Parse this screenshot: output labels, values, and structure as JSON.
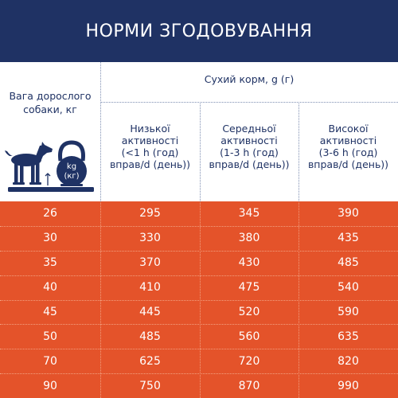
{
  "title": "НОРМИ ЗГОДОВУВАННЯ",
  "header": {
    "weight_label_line1": "Вага дорослого",
    "weight_label_line2": "собаки, кг",
    "dry_food_label": "Сухий корм, g (г)",
    "columns": [
      {
        "line1": "Низької",
        "line2": "активності",
        "line3": "(<1 h (год)",
        "line4": "вправ/d (день))"
      },
      {
        "line1": "Середньої",
        "line2": "активності",
        "line3": "(1-3 h (год)",
        "line4": "вправ/d (день))"
      },
      {
        "line1": "Високої",
        "line2": "активності",
        "line3": "(3-6 h (год)",
        "line4": "вправ/d (день))"
      }
    ],
    "kettlebell_line1": "kg",
    "kettlebell_line2": "(кг)"
  },
  "rows": [
    {
      "weight": "26",
      "low": "295",
      "medium": "345",
      "high": "390"
    },
    {
      "weight": "30",
      "low": "330",
      "medium": "380",
      "high": "435"
    },
    {
      "weight": "35",
      "low": "370",
      "medium": "430",
      "high": "485"
    },
    {
      "weight": "40",
      "low": "410",
      "medium": "475",
      "high": "540"
    },
    {
      "weight": "45",
      "low": "445",
      "medium": "520",
      "high": "590"
    },
    {
      "weight": "50",
      "low": "485",
      "medium": "560",
      "high": "635"
    },
    {
      "weight": "70",
      "low": "625",
      "medium": "720",
      "high": "820"
    },
    {
      "weight": "90",
      "low": "750",
      "medium": "870",
      "high": "990"
    }
  ],
  "colors": {
    "navy": "#1f3264",
    "orange": "#e4532a"
  },
  "icons": [
    "dog-icon",
    "kettlebell-icon",
    "scale-icon"
  ]
}
